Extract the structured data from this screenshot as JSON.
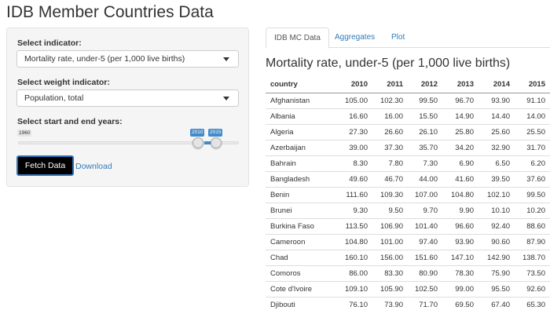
{
  "app": {
    "title": "IDB Member Countries Data"
  },
  "sidebar": {
    "indicator_label": "Select indicator:",
    "indicator_value": "Mortality rate, under-5 (per 1,000 live births)",
    "weight_label": "Select weight indicator:",
    "weight_value": "Population, total",
    "years_label": "Select start and end years:",
    "slider": {
      "min": "1960",
      "from": "2010",
      "to": "2015"
    },
    "fetch_label": "Fetch Data",
    "download_label": "Download"
  },
  "tabs": [
    {
      "label": "IDB MC Data",
      "active": true
    },
    {
      "label": "Aggregates",
      "active": false
    },
    {
      "label": "Plot",
      "active": false
    }
  ],
  "panel": {
    "title": "Mortality rate, under-5 (per 1,000 live births)"
  },
  "table": {
    "columns": [
      "country",
      "2010",
      "2011",
      "2012",
      "2013",
      "2014",
      "2015"
    ],
    "rows": [
      [
        "Afghanistan",
        "105.00",
        "102.30",
        "99.50",
        "96.70",
        "93.90",
        "91.10"
      ],
      [
        "Albania",
        "16.60",
        "16.00",
        "15.50",
        "14.90",
        "14.40",
        "14.00"
      ],
      [
        "Algeria",
        "27.30",
        "26.60",
        "26.10",
        "25.80",
        "25.60",
        "25.50"
      ],
      [
        "Azerbaijan",
        "39.00",
        "37.30",
        "35.70",
        "34.20",
        "32.90",
        "31.70"
      ],
      [
        "Bahrain",
        "8.30",
        "7.80",
        "7.30",
        "6.90",
        "6.50",
        "6.20"
      ],
      [
        "Bangladesh",
        "49.60",
        "46.70",
        "44.00",
        "41.60",
        "39.50",
        "37.60"
      ],
      [
        "Benin",
        "111.60",
        "109.30",
        "107.00",
        "104.80",
        "102.10",
        "99.50"
      ],
      [
        "Brunei",
        "9.30",
        "9.50",
        "9.70",
        "9.90",
        "10.10",
        "10.20"
      ],
      [
        "Burkina Faso",
        "113.50",
        "106.90",
        "101.40",
        "96.60",
        "92.40",
        "88.60"
      ],
      [
        "Cameroon",
        "104.80",
        "101.00",
        "97.40",
        "93.90",
        "90.60",
        "87.90"
      ],
      [
        "Chad",
        "160.10",
        "156.00",
        "151.60",
        "147.10",
        "142.90",
        "138.70"
      ],
      [
        "Comoros",
        "86.00",
        "83.30",
        "80.90",
        "78.30",
        "75.90",
        "73.50"
      ],
      [
        "Cote d'Ivoire",
        "109.10",
        "105.90",
        "102.50",
        "99.00",
        "95.50",
        "92.60"
      ],
      [
        "Djibouti",
        "76.10",
        "73.90",
        "71.70",
        "69.50",
        "67.40",
        "65.30"
      ]
    ]
  }
}
